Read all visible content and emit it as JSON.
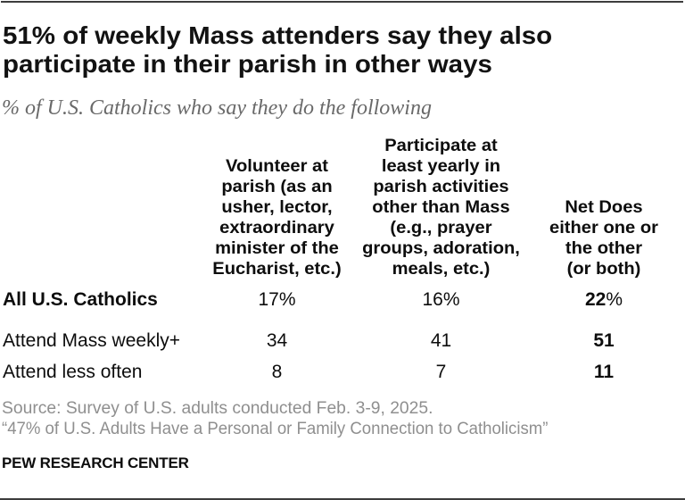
{
  "accent_colors": {
    "text_black": "#0d0d0d",
    "subtitle_gray": "#696969",
    "footer_gray": "#8f8f8f",
    "rule_gray": "#3d3d3d",
    "background": "#ffffff"
  },
  "header": {
    "title_line_1": "51% of weekly Mass attenders say they also",
    "title_line_2": "participate in their parish in other ways",
    "subtitle": "% of U.S. Catholics who say they do the following"
  },
  "table": {
    "column_headers": [
      "Volunteer at\nparish (as an\nusher, lector,\nextraordinary\nminister of the\nEucharist, etc.)",
      "Participate at\nleast yearly in\nparish activities\nother than Mass\n(e.g., prayer\ngroups, adoration,\nmeals, etc.)",
      "Net Does\neither one or\nthe other\n(or both)"
    ],
    "rows": [
      {
        "label": "All U.S. Catholics",
        "col1": "17%",
        "col2": "16%",
        "net": "22",
        "net_suffix": "%"
      },
      {
        "label": "Attend Mass weekly+",
        "col1": "34",
        "col2": "41",
        "net": "51",
        "net_suffix": ""
      },
      {
        "label": "Attend less often",
        "col1": "8",
        "col2": "7",
        "net": "11",
        "net_suffix": ""
      }
    ]
  },
  "footer": {
    "source_line": "Source: Survey of U.S. adults conducted Feb. 3-9, 2025.",
    "report_line": "“47% of U.S. Adults Have a Personal or Family Connection to Catholicism”",
    "wordmark": "PEW RESEARCH CENTER"
  },
  "chart_data": {
    "type": "table",
    "title": "51% of weekly Mass attenders say they also participate in their parish in other ways",
    "subtitle": "% of U.S. Catholics who say they do the following",
    "columns": [
      "Volunteer at parish (as an usher, lector, extraordinary minister of the Eucharist, etc.)",
      "Participate at least yearly in parish activities other than Mass (e.g., prayer groups, adoration, meals, etc.)",
      "Net Does either one or the other (or both)"
    ],
    "categories": [
      "All U.S. Catholics",
      "Attend Mass weekly+",
      "Attend less often"
    ],
    "series": [
      {
        "name": "Volunteer at parish",
        "values": [
          17,
          16,
          22
        ],
        "row": "All U.S. Catholics"
      },
      {
        "name": "Attend Mass weekly+",
        "values": [
          34,
          41,
          51
        ]
      },
      {
        "name": "Attend less often",
        "values": [
          8,
          7,
          11
        ]
      }
    ],
    "unit": "%",
    "source": "Survey of U.S. adults conducted Feb. 3-9, 2025."
  }
}
